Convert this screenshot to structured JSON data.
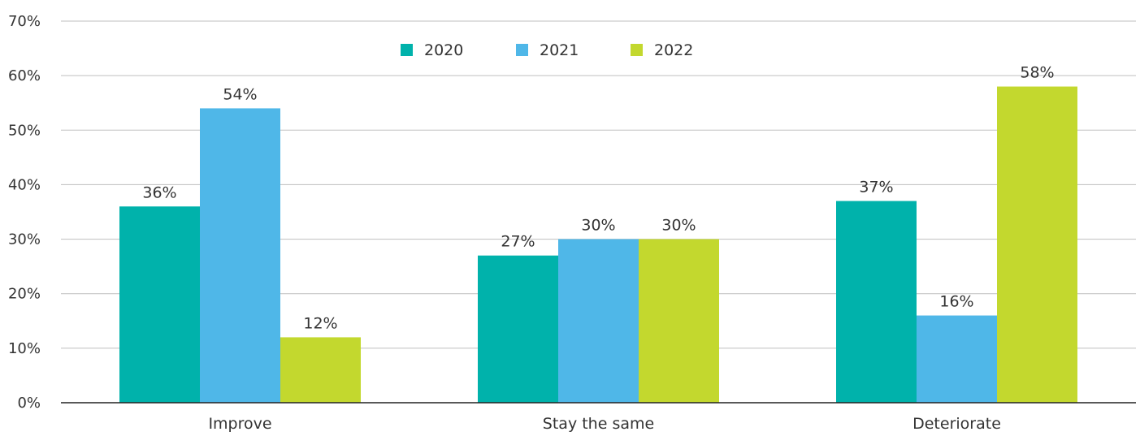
{
  "chart_data": {
    "type": "bar",
    "categories": [
      "Improve",
      "Stay the same",
      "Deteriorate"
    ],
    "series": [
      {
        "name": "2020",
        "values": [
          36,
          27,
          37
        ],
        "color": "#00b2ab",
        "labels": [
          "36%",
          "27%",
          "37%"
        ]
      },
      {
        "name": "2021",
        "values": [
          54,
          30,
          16
        ],
        "color": "#4fb7e8",
        "labels": [
          "54%",
          "30%",
          "16%"
        ]
      },
      {
        "name": "2022",
        "values": [
          12,
          30,
          58
        ],
        "color": "#c3d82e",
        "labels": [
          "12%",
          "30%",
          "58%"
        ]
      }
    ],
    "ylim": [
      0,
      70
    ],
    "yticks": [
      0,
      10,
      20,
      30,
      40,
      50,
      60,
      70
    ],
    "ytick_labels": [
      "0%",
      "10%",
      "20%",
      "30%",
      "40%",
      "50%",
      "60%",
      "70%"
    ],
    "grid": true,
    "legend_position": "top-center",
    "title": "",
    "xlabel": "",
    "ylabel": ""
  }
}
